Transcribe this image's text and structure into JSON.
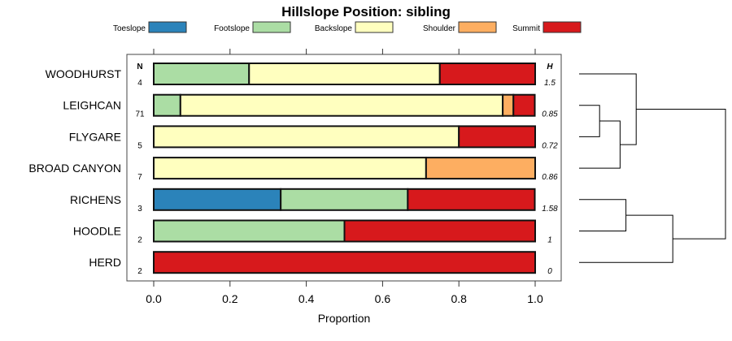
{
  "chart_data": {
    "type": "bar",
    "subtype": "stacked-horizontal-proportion",
    "title": "Hillslope Position: sibling",
    "xlabel": "Proportion",
    "ylabel": "",
    "xlim": [
      0,
      1
    ],
    "xticks": [
      "0.0",
      "0.2",
      "0.4",
      "0.6",
      "0.8",
      "1.0"
    ],
    "legend_position": "top",
    "n_header": "N",
    "h_header": "H",
    "series": [
      {
        "name": "Toeslope",
        "color": "#2B83BA"
      },
      {
        "name": "Footslope",
        "color": "#ABDDA4"
      },
      {
        "name": "Backslope",
        "color": "#FFFFBF"
      },
      {
        "name": "Shoulder",
        "color": "#FDAE61"
      },
      {
        "name": "Summit",
        "color": "#D7191C"
      }
    ],
    "categories": [
      "WOODHURST",
      "LEIGHCAN",
      "FLYGARE",
      "BROAD CANYON",
      "RICHENS",
      "HOODLE",
      "HERD"
    ],
    "n": [
      "4",
      "71",
      "5",
      "7",
      "3",
      "2",
      "2"
    ],
    "h": [
      "1.5",
      "0.85",
      "0.72",
      "0.86",
      "1.58",
      "1",
      "0"
    ],
    "values": [
      [
        0,
        0.25,
        0.5,
        0,
        0.25
      ],
      [
        0,
        0.07,
        0.845,
        0.028,
        0.056
      ],
      [
        0,
        0,
        0.8,
        0,
        0.2
      ],
      [
        0,
        0,
        0.714,
        0.286,
        0
      ],
      [
        0.333,
        0.333,
        0,
        0,
        0.333
      ],
      [
        0,
        0.5,
        0,
        0,
        0.5
      ],
      [
        0,
        0,
        0,
        0,
        1
      ]
    ],
    "dendrogram": {
      "merges": [
        {
          "a": "L1",
          "b": "L2",
          "height": 0.14
        },
        {
          "a": "M0",
          "b": "L3",
          "height": 0.28
        },
        {
          "a": "L0",
          "b": "M1",
          "height": 0.39
        },
        {
          "a": "L4",
          "b": "L5",
          "height": 0.32
        },
        {
          "a": "M3",
          "b": "L6",
          "height": 0.64
        },
        {
          "a": "M2",
          "b": "M4",
          "height": 1.0
        }
      ]
    }
  }
}
